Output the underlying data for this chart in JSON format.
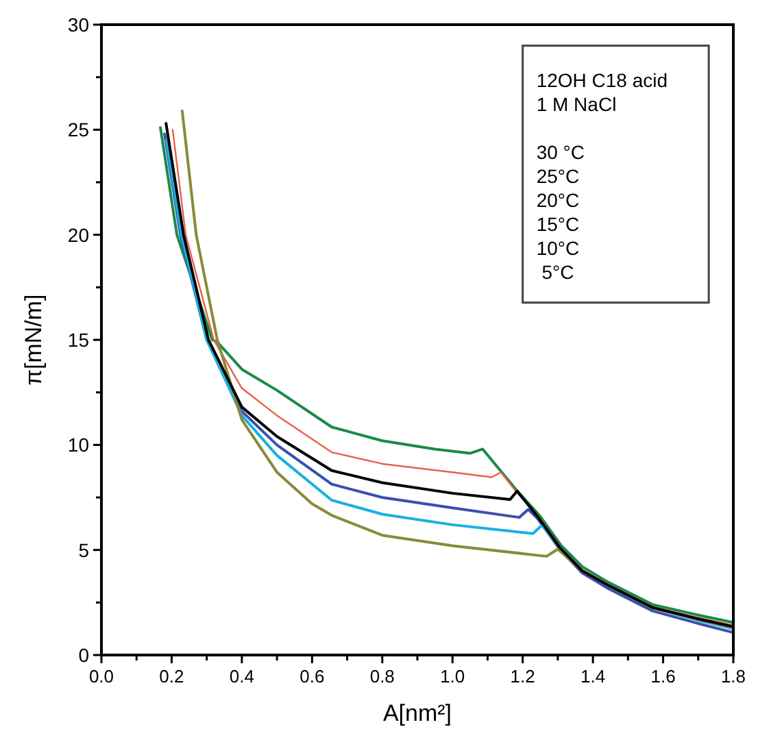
{
  "chart_data": {
    "type": "line",
    "xlabel": "A[nm²]",
    "ylabel": "π[mN/m]",
    "xlim": [
      0,
      1.8
    ],
    "ylim": [
      0,
      30
    ],
    "xticks": [
      {
        "value": 0,
        "label": "0.0"
      },
      {
        "value": 0.1,
        "label": null
      },
      0.2,
      {
        "value": 0.3,
        "label": null
      },
      0.4,
      {
        "value": 0.5,
        "label": null
      },
      0.6,
      {
        "value": 0.7,
        "label": null
      },
      0.8,
      {
        "value": 0.9,
        "label": null
      },
      {
        "value": 1,
        "label": "1.0"
      },
      {
        "value": 1.1,
        "label": null
      },
      1.2,
      {
        "value": 1.3,
        "label": null
      },
      1.4,
      {
        "value": 1.5,
        "label": null
      },
      1.6,
      {
        "value": 1.7,
        "label": null
      },
      1.8
    ],
    "yticks": [
      0,
      {
        "value": 2.5,
        "label": null
      },
      5,
      {
        "value": 7.5,
        "label": null
      },
      10,
      {
        "value": 12.5,
        "label": null
      },
      15,
      {
        "value": 17.5,
        "label": null
      },
      20,
      {
        "value": 22.5,
        "label": null
      },
      25,
      {
        "value": 27.5,
        "label": null
      },
      30
    ],
    "grid": false,
    "marker": "none",
    "line_style": "solid",
    "annotations": [
      "12OH C18 acid",
      "1 M NaCl",
      "30 °C",
      "25°C",
      "20°C",
      "15°C",
      "10°C",
      " 5°C"
    ],
    "series": [
      {
        "color": "#1a8a4a",
        "x": [
          0.168,
          0.215,
          0.316,
          0.33,
          0.4,
          0.5,
          0.656,
          0.8,
          0.95,
          1.05,
          1.086,
          1.18,
          1.25,
          1.31,
          1.37,
          1.44,
          1.57,
          1.7,
          1.8
        ],
        "values": [
          25.1,
          20,
          15,
          14.9,
          13.6,
          12.6,
          10.85,
          10.2,
          9.8,
          9.6,
          9.8,
          7.9,
          6.6,
          5.2,
          4.2,
          3.5,
          2.4,
          1.9,
          1.55
        ]
      },
      {
        "color": "#e8604c",
        "x": [
          0.203,
          0.24,
          0.32,
          0.4,
          0.5,
          0.656,
          0.8,
          1.0,
          1.112,
          1.138,
          1.18,
          1.242,
          1.307,
          1.37,
          1.44,
          1.57,
          1.7,
          1.8
        ],
        "values": [
          25.0,
          20,
          15,
          12.7,
          11.4,
          9.65,
          9.1,
          8.7,
          8.46,
          8.7,
          7.8,
          6.65,
          5.15,
          4.05,
          3.4,
          2.3,
          1.78,
          1.42
        ]
      },
      {
        "color": "#3a4fb0",
        "x": [
          0.18,
          0.225,
          0.3,
          0.4,
          0.5,
          0.656,
          0.8,
          1.0,
          1.19,
          1.216,
          1.242,
          1.307,
          1.37,
          1.44,
          1.57,
          1.7,
          1.8
        ],
        "values": [
          24.8,
          20,
          15,
          11.6,
          10.0,
          8.13,
          7.5,
          7.0,
          6.55,
          6.93,
          6.5,
          5.0,
          3.9,
          3.2,
          2.1,
          1.5,
          1.07
        ]
      },
      {
        "color": "#1ab0e0",
        "x": [
          0.185,
          0.228,
          0.3,
          0.4,
          0.5,
          0.656,
          0.8,
          1.0,
          1.229,
          1.255,
          1.307,
          1.37,
          1.44,
          1.57,
          1.7,
          1.8
        ],
        "values": [
          24.5,
          20,
          15,
          11.4,
          9.5,
          7.37,
          6.7,
          6.2,
          5.78,
          6.18,
          5.1,
          4.0,
          3.35,
          2.25,
          1.65,
          1.25
        ]
      },
      {
        "color": "#8a8a3a",
        "x": [
          0.23,
          0.27,
          0.33,
          0.4,
          0.5,
          0.6,
          0.656,
          0.8,
          1.0,
          1.268,
          1.3,
          1.37,
          1.44,
          1.57,
          1.7,
          1.8
        ],
        "values": [
          25.9,
          20,
          15,
          11.2,
          8.7,
          7.2,
          6.65,
          5.7,
          5.2,
          4.7,
          5.04,
          4.0,
          3.35,
          2.25,
          1.7,
          1.3
        ]
      },
      {
        "color": "#000000",
        "x": [
          0.184,
          0.234,
          0.305,
          0.4,
          0.5,
          0.656,
          0.8,
          1.0,
          1.164,
          1.184,
          1.242,
          1.307,
          1.37,
          1.44,
          1.57,
          1.7,
          1.8
        ],
        "values": [
          25.3,
          20,
          15,
          11.8,
          10.4,
          8.78,
          8.2,
          7.7,
          7.4,
          7.8,
          6.6,
          5.09,
          4.0,
          3.35,
          2.26,
          1.72,
          1.35
        ]
      }
    ]
  }
}
